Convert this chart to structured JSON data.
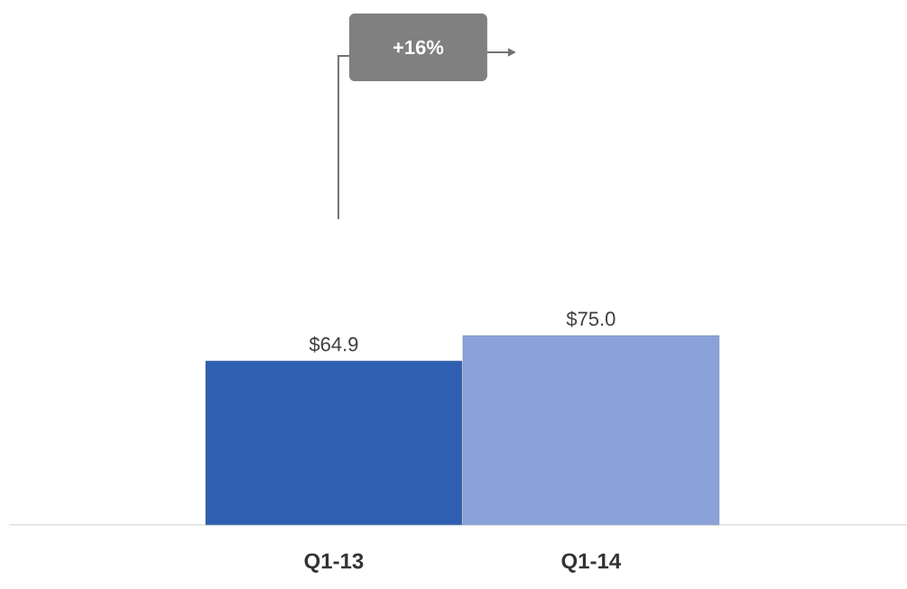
{
  "chart_data": {
    "type": "bar",
    "categories": [
      "Q1-13",
      "Q1-14"
    ],
    "values": [
      64.9,
      75.0
    ],
    "colors": [
      "#2f5fb0",
      "#8aa2d8"
    ],
    "value_labels": [
      "$64.9",
      "$75.0"
    ],
    "annotations": [
      "+16%"
    ]
  }
}
